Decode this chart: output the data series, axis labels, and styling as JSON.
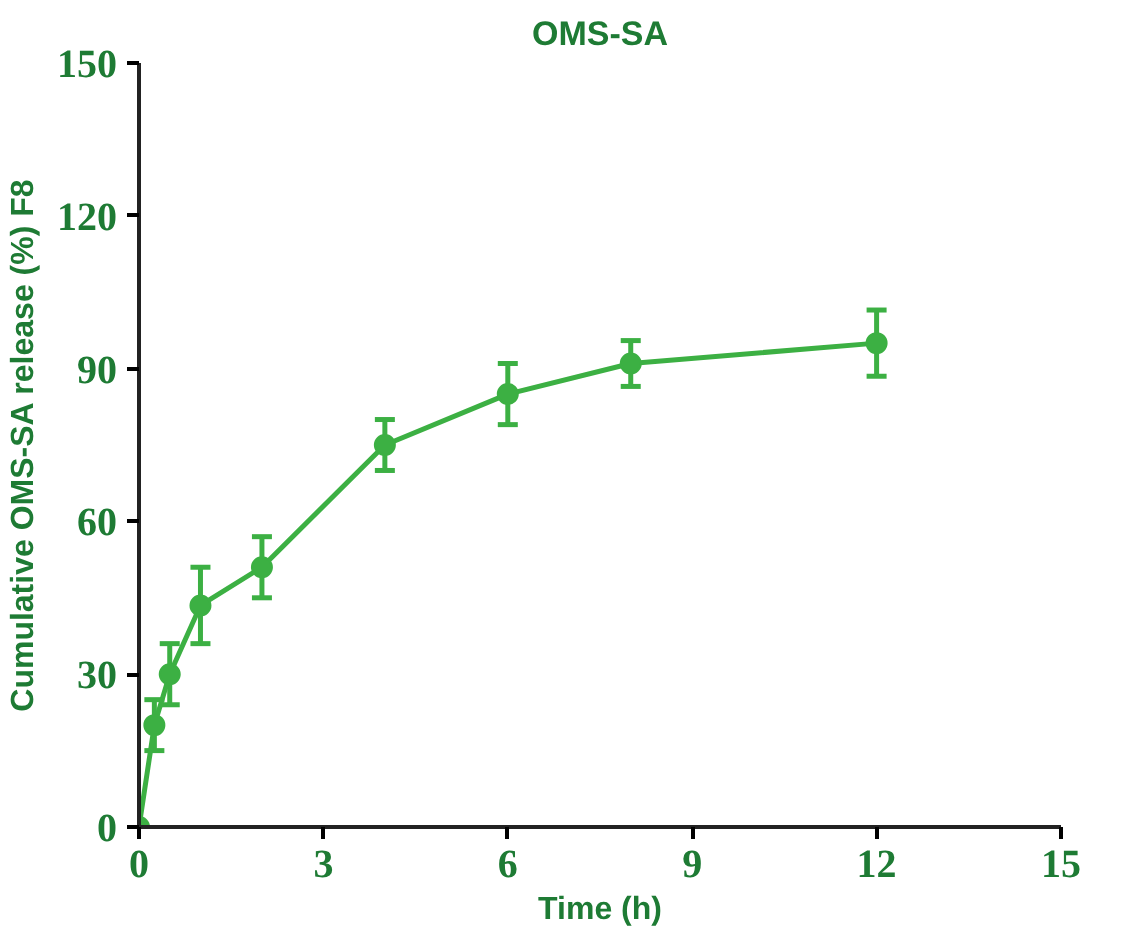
{
  "chart_data": {
    "type": "line",
    "title": "OMS-SA",
    "xlabel": "Time (h)",
    "ylabel": "Cumulative OMS-SA release (%) F8",
    "x": [
      0,
      0.25,
      0.5,
      1,
      2,
      4,
      6,
      8,
      12
    ],
    "series": [
      {
        "color": "#3cb043",
        "values": [
          0,
          20,
          30,
          43.5,
          51,
          75,
          85,
          91,
          95
        ],
        "errors": [
          null,
          5,
          6,
          7.5,
          6,
          5,
          6,
          4.5,
          6.5
        ]
      }
    ],
    "xlim": [
      0,
      15
    ],
    "xticks": [
      0,
      3,
      6,
      9,
      12,
      15
    ],
    "ylim": [
      0,
      150
    ],
    "yticks": [
      0,
      30,
      60,
      90,
      120,
      150
    ],
    "marker": "circle",
    "line_style": "solid"
  }
}
